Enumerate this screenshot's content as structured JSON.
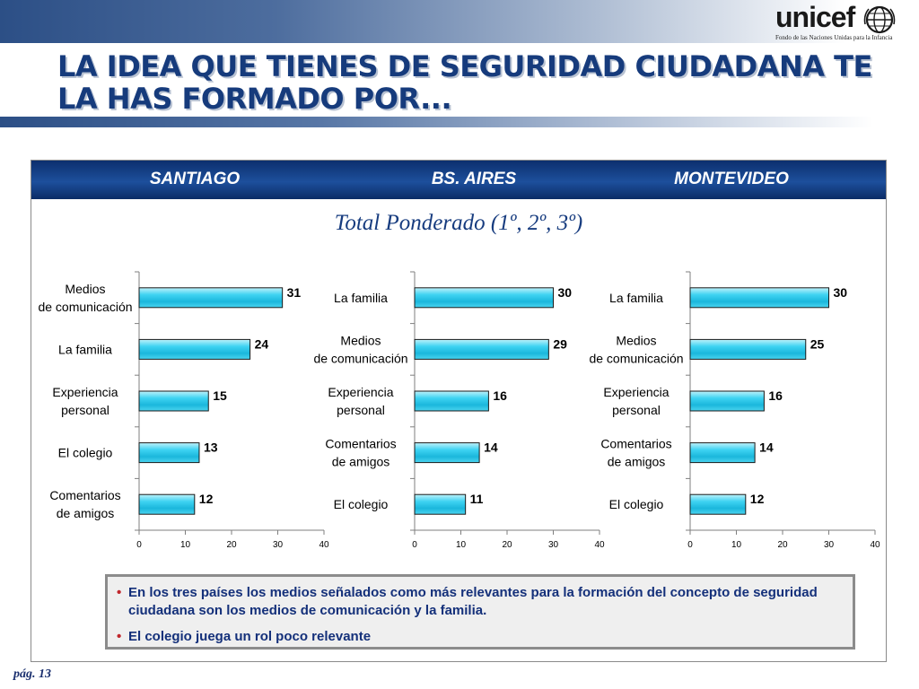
{
  "header": {
    "title": "LA IDEA QUE TIENES DE SEGURIDAD CIUDADANA TE LA HAS FORMADO POR...",
    "logo_text": "unicef",
    "logo_tagline": "Fondo de las Naciones Unidas para la Infancia"
  },
  "panel": {
    "cities": [
      "SANTIAGO",
      "BS. AIRES",
      "MONTEVIDEO"
    ],
    "subtitle": "Total Ponderado (1º, 2º, 3º)"
  },
  "chart_data": [
    {
      "type": "bar",
      "orientation": "horizontal",
      "title": "SANTIAGO",
      "categories": [
        "Medios de comunicación",
        "La familia",
        "Experiencia personal",
        "El colegio",
        "Comentarios de amigos"
      ],
      "values": [
        31,
        24,
        15,
        13,
        12
      ],
      "xlim": [
        0,
        40
      ],
      "xticks": [
        0,
        10,
        20,
        30,
        40
      ],
      "bar_color": "#33ccee",
      "grid": false
    },
    {
      "type": "bar",
      "orientation": "horizontal",
      "title": "BS. AIRES",
      "categories": [
        "La familia",
        "Medios de comunicación",
        "Experiencia personal",
        "Comentarios de amigos",
        "El colegio"
      ],
      "values": [
        30,
        29,
        16,
        14,
        11
      ],
      "xlim": [
        0,
        40
      ],
      "xticks": [
        0,
        10,
        20,
        30,
        40
      ],
      "bar_color": "#33ccee",
      "grid": false
    },
    {
      "type": "bar",
      "orientation": "horizontal",
      "title": "MONTEVIDEO",
      "categories": [
        "La familia",
        "Medios de comunicación",
        "Experiencia personal",
        "Comentarios de amigos",
        "El colegio"
      ],
      "values": [
        30,
        25,
        16,
        14,
        12
      ],
      "xlim": [
        0,
        40
      ],
      "xticks": [
        0,
        10,
        20,
        30,
        40
      ],
      "bar_color": "#33ccee",
      "grid": false
    }
  ],
  "notes": [
    "En los tres países los medios señalados como más relevantes para la formación del concepto de seguridad ciudadana son los medios de comunicación y la familia.",
    "El colegio juega un rol poco relevante"
  ],
  "footer": {
    "page": "pág. 13"
  },
  "colors": {
    "title": "#163b7c",
    "header_bar": "#1d4f9c",
    "bar_fill": "#33ccee",
    "note_text": "#14307a",
    "bullet": "#c0262c"
  }
}
